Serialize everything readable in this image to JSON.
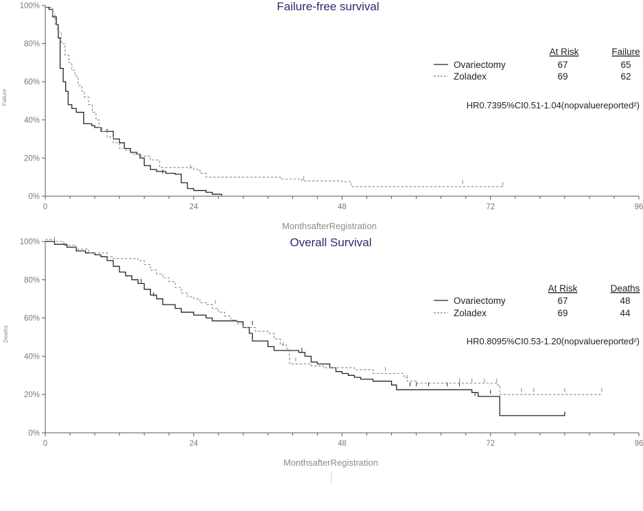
{
  "chart_data": [
    {
      "type": "line",
      "title": "Failure-free survival",
      "xlabel": "MonthsafterRegistration",
      "ylabel": "Failure",
      "xlim": [
        0,
        96
      ],
      "ylim": [
        0,
        100
      ],
      "x_ticks": [
        "0",
        "24",
        "48",
        "72",
        "96"
      ],
      "y_ticks": [
        "0%",
        "20%",
        "40%",
        "60%",
        "80%",
        "100%"
      ],
      "table_headers": [
        "At Risk",
        "Failure"
      ],
      "hr_text": "HR0.7395%CI0.51-1.04(nopvaluereported²)",
      "series": [
        {
          "name": "Ovariectomy",
          "at_risk": "67",
          "events": "65",
          "style": "solid",
          "color": "#222222",
          "points": [
            [
              0,
              99
            ],
            [
              0.6,
              98
            ],
            [
              1.2,
              94
            ],
            [
              1.8,
              90
            ],
            [
              2.1,
              83
            ],
            [
              2.4,
              67
            ],
            [
              2.9,
              60
            ],
            [
              3.3,
              55
            ],
            [
              3.7,
              48
            ],
            [
              4.3,
              46
            ],
            [
              5.0,
              44
            ],
            [
              6.2,
              38
            ],
            [
              7.5,
              37
            ],
            [
              8.0,
              36
            ],
            [
              9.0,
              34
            ],
            [
              10.0,
              34
            ],
            [
              11.0,
              30
            ],
            [
              12.0,
              28
            ],
            [
              12.8,
              25
            ],
            [
              13.8,
              23
            ],
            [
              14.8,
              22
            ],
            [
              15.3,
              20
            ],
            [
              16.0,
              16
            ],
            [
              17.0,
              14
            ],
            [
              18.0,
              13
            ],
            [
              19.5,
              12
            ],
            [
              21.0,
              11.5
            ],
            [
              22.0,
              7
            ],
            [
              23.0,
              4
            ],
            [
              24.0,
              3
            ],
            [
              26.0,
              2
            ],
            [
              27.0,
              1
            ],
            [
              28.5,
              0.3
            ]
          ],
          "censored": [
            [
              10.0,
              34
            ],
            [
              19.0,
              12.5
            ]
          ]
        },
        {
          "name": "Zoladex",
          "at_risk": "69",
          "events": "62",
          "style": "dashed",
          "color": "#888888",
          "points": [
            [
              0,
              99
            ],
            [
              1.2,
              95
            ],
            [
              1.6,
              90
            ],
            [
              2.0,
              86
            ],
            [
              2.6,
              80
            ],
            [
              3.2,
              74
            ],
            [
              3.8,
              70
            ],
            [
              4.3,
              66
            ],
            [
              4.8,
              63
            ],
            [
              5.3,
              58
            ],
            [
              5.9,
              55
            ],
            [
              6.3,
              52
            ],
            [
              7.0,
              48
            ],
            [
              7.6,
              44
            ],
            [
              8.2,
              40
            ],
            [
              8.7,
              36
            ],
            [
              9.2,
              34
            ],
            [
              10.0,
              31
            ],
            [
              11.0,
              28
            ],
            [
              12.0,
              25
            ],
            [
              13.0,
              24
            ],
            [
              14.0,
              22
            ],
            [
              15.5,
              21
            ],
            [
              17.0,
              19
            ],
            [
              18.5,
              15
            ],
            [
              21.0,
              15
            ],
            [
              24.0,
              14
            ],
            [
              25.0,
              12
            ],
            [
              26.0,
              10
            ],
            [
              38.0,
              9
            ],
            [
              41.5,
              8
            ],
            [
              48.0,
              7.5
            ],
            [
              49.5,
              5
            ],
            [
              74.0,
              5
            ]
          ],
          "censored": [
            [
              23.5,
              15
            ],
            [
              41.8,
              9
            ],
            [
              67.5,
              7
            ],
            [
              74.0,
              6
            ]
          ]
        }
      ]
    },
    {
      "type": "line",
      "title": "Overall Survival",
      "xlabel": "MonthsafterRegistration",
      "ylabel": "Deaths",
      "xlim": [
        0,
        96
      ],
      "ylim": [
        0,
        100
      ],
      "x_ticks": [
        "0",
        "24",
        "48",
        "72",
        "96"
      ],
      "y_ticks": [
        "0%",
        "20%",
        "40%",
        "60%",
        "80%",
        "100%"
      ],
      "table_headers": [
        "At Risk",
        "Deaths"
      ],
      "hr_text": "HR0.8095%CI0.53-1.20(nopvaluereported²)",
      "series": [
        {
          "name": "Ovariectomy",
          "at_risk": "67",
          "events": "48",
          "style": "solid",
          "color": "#222222",
          "points": [
            [
              0,
              100
            ],
            [
              1.5,
              98.5
            ],
            [
              3.5,
              97
            ],
            [
              5,
              95
            ],
            [
              6.5,
              94
            ],
            [
              8,
              93
            ],
            [
              9,
              92
            ],
            [
              10,
              90
            ],
            [
              11,
              87
            ],
            [
              12,
              84
            ],
            [
              13,
              82
            ],
            [
              14,
              80
            ],
            [
              15,
              78
            ],
            [
              16,
              75
            ],
            [
              17,
              72
            ],
            [
              18,
              70
            ],
            [
              19,
              67
            ],
            [
              21,
              65
            ],
            [
              22,
              63
            ],
            [
              24,
              61.5
            ],
            [
              26,
              60
            ],
            [
              27,
              58.5
            ],
            [
              31,
              58
            ],
            [
              32,
              55
            ],
            [
              33,
              52
            ],
            [
              33.5,
              48
            ],
            [
              36,
              45
            ],
            [
              37,
              43
            ],
            [
              41,
              42
            ],
            [
              42,
              40
            ],
            [
              43,
              37
            ],
            [
              44,
              36
            ],
            [
              46,
              34
            ],
            [
              47,
              32
            ],
            [
              48,
              31
            ],
            [
              49,
              30
            ],
            [
              50,
              29
            ],
            [
              51,
              28
            ],
            [
              53,
              27
            ],
            [
              56,
              25
            ],
            [
              56.8,
              22.5
            ],
            [
              69,
              21
            ],
            [
              70,
              19
            ],
            [
              73.5,
              19
            ],
            [
              73.5,
              9
            ],
            [
              84,
              9
            ],
            [
              84,
              11
            ]
          ],
          "censored": [
            [
              15.5,
              79
            ],
            [
              17.5,
              72
            ],
            [
              33.5,
              57
            ],
            [
              41.5,
              43
            ],
            [
              59,
              25
            ],
            [
              60,
              25
            ],
            [
              62,
              25
            ],
            [
              65,
              25
            ],
            [
              67,
              25
            ],
            [
              69.5,
              20
            ],
            [
              72,
              21
            ]
          ]
        },
        {
          "name": "Zoladex",
          "at_risk": "69",
          "events": "44",
          "style": "dashed",
          "color": "#888888",
          "points": [
            [
              0,
              101
            ],
            [
              1.5,
              100
            ],
            [
              3,
              98
            ],
            [
              5,
              96
            ],
            [
              7,
              94
            ],
            [
              10,
              92
            ],
            [
              11,
              91
            ],
            [
              15,
              90
            ],
            [
              16,
              88
            ],
            [
              17,
              85
            ],
            [
              18,
              83
            ],
            [
              19,
              81
            ],
            [
              20,
              79
            ],
            [
              21,
              76
            ],
            [
              22,
              73
            ],
            [
              23,
              71
            ],
            [
              24,
              70
            ],
            [
              25,
              68
            ],
            [
              26,
              67
            ],
            [
              27,
              65
            ],
            [
              28,
              63
            ],
            [
              29,
              61
            ],
            [
              30,
              59
            ],
            [
              31,
              57
            ],
            [
              32,
              55
            ],
            [
              34,
              53
            ],
            [
              36,
              52
            ],
            [
              37,
              49
            ],
            [
              38,
              46
            ],
            [
              39,
              44
            ],
            [
              39.5,
              36
            ],
            [
              43,
              35
            ],
            [
              45,
              34
            ],
            [
              50,
              33
            ],
            [
              53,
              31
            ],
            [
              58,
              29
            ],
            [
              58.5,
              27
            ],
            [
              60,
              26
            ],
            [
              73,
              25
            ],
            [
              73.5,
              20
            ],
            [
              90,
              20
            ]
          ],
          "censored": [
            [
              1.5,
              101
            ],
            [
              27.5,
              68
            ],
            [
              38.5,
              46
            ],
            [
              40.5,
              38
            ],
            [
              55,
              33
            ],
            [
              58.5,
              29
            ],
            [
              67,
              27
            ],
            [
              69,
              27
            ],
            [
              71,
              27
            ],
            [
              73,
              27
            ],
            [
              77,
              22
            ],
            [
              79,
              22
            ],
            [
              84,
              22
            ],
            [
              90,
              22
            ]
          ]
        }
      ]
    }
  ]
}
